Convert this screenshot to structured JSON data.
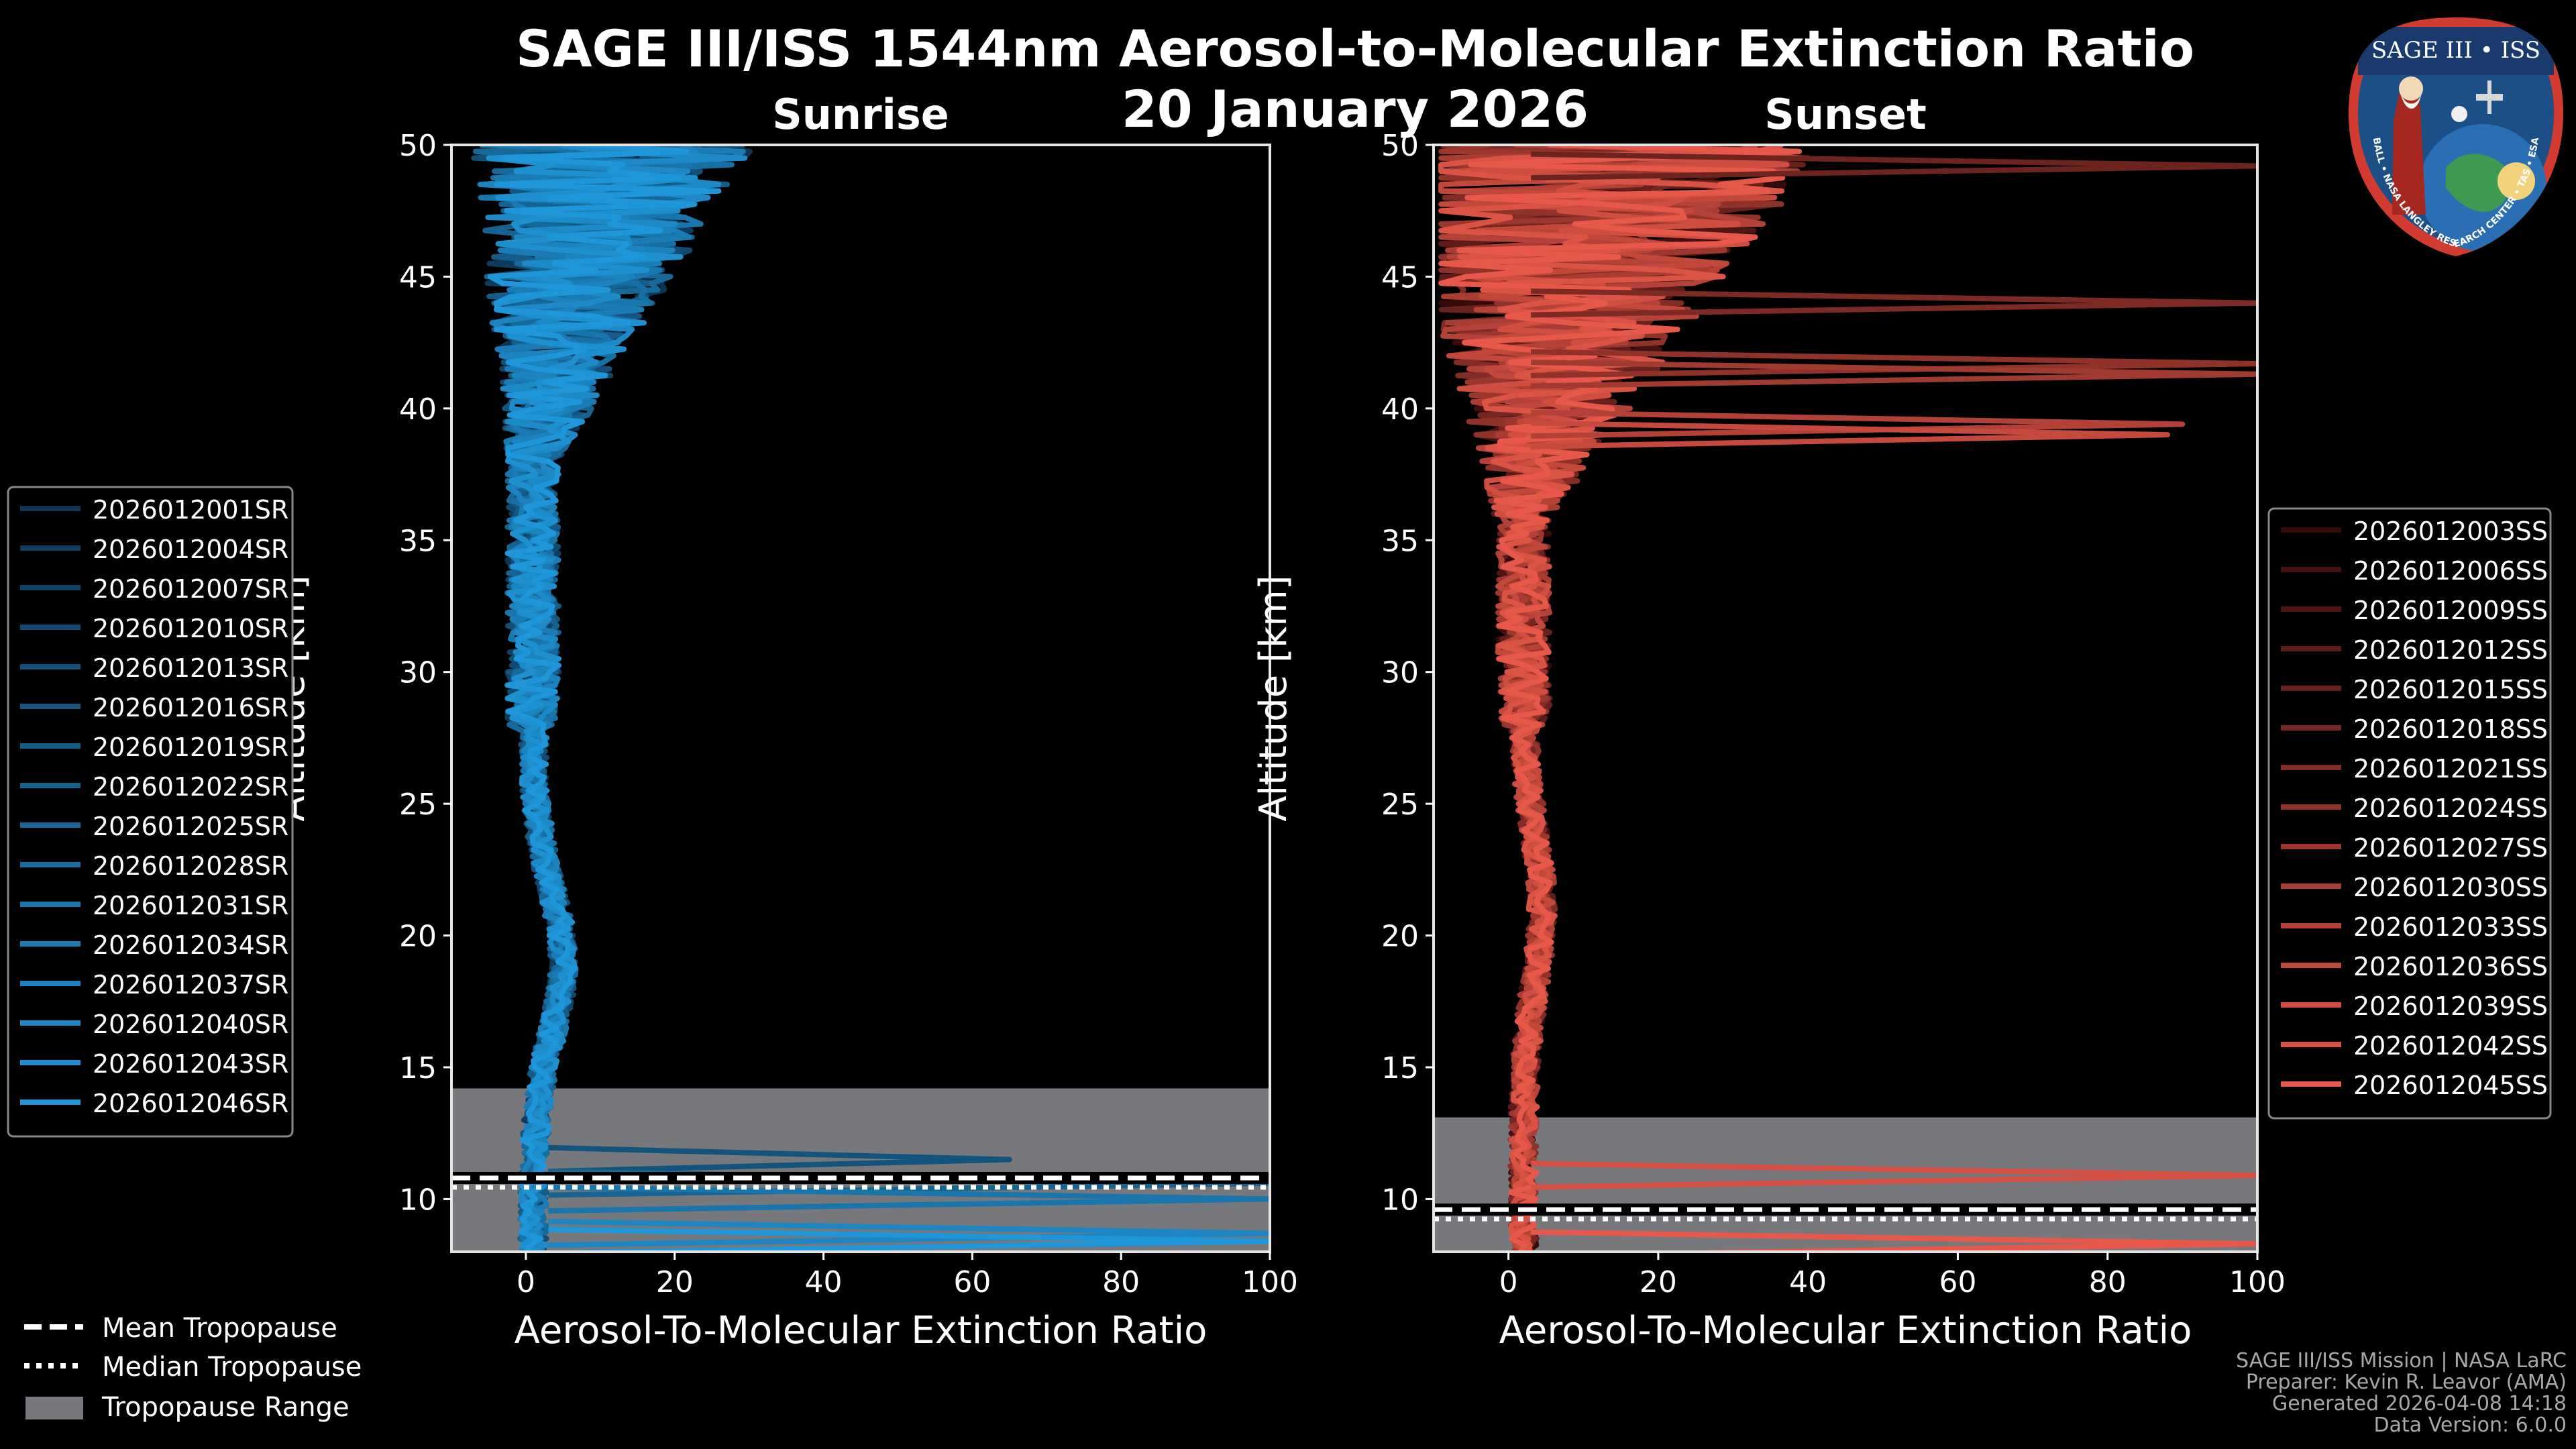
{
  "header": {
    "title_line1": "SAGE III/ISS 1544nm Aerosol-to-Molecular Extinction Ratio",
    "title_line2": "20 January 2026"
  },
  "colors": {
    "sunrise": "#1f96d9",
    "sunset": "#e8584a",
    "tropopause_range": "#76787c",
    "background": "#000000"
  },
  "chart_data": [
    {
      "type": "line",
      "title": "Sunrise",
      "xlabel": "Aerosol-To-Molecular Extinction Ratio",
      "ylabel": "Altitude [km]",
      "xlim": [
        -10,
        100
      ],
      "ylim": [
        8,
        50
      ],
      "xticks": [
        0,
        20,
        40,
        60,
        80,
        100
      ],
      "yticks": [
        10,
        15,
        20,
        25,
        30,
        35,
        40,
        45,
        50
      ],
      "tropopause_range": [
        8,
        14.2
      ],
      "mean_tropopause": 10.8,
      "median_tropopause": 10.7,
      "spikes": [
        [
          11.5,
          65
        ],
        [
          10.6,
          100
        ],
        [
          10.0,
          100
        ],
        [
          8.7,
          100
        ],
        [
          8.4,
          100
        ]
      ],
      "series": [
        "2026012001SR",
        "2026012004SR",
        "2026012007SR",
        "2026012010SR",
        "2026012013SR",
        "2026012016SR",
        "2026012019SR",
        "2026012022SR",
        "2026012025SR",
        "2026012028SR",
        "2026012031SR",
        "2026012034SR",
        "2026012037SR",
        "2026012040SR",
        "2026012043SR",
        "2026012046SR"
      ]
    },
    {
      "type": "line",
      "title": "Sunset",
      "xlabel": "Aerosol-To-Molecular Extinction Ratio",
      "ylabel": "Altitude [km]",
      "xlim": [
        -10,
        100
      ],
      "ylim": [
        8,
        50
      ],
      "xticks": [
        0,
        20,
        40,
        60,
        80,
        100
      ],
      "yticks": [
        10,
        15,
        20,
        25,
        30,
        35,
        40,
        45,
        50
      ],
      "tropopause_range": [
        8,
        13.1
      ],
      "mean_tropopause": 9.6,
      "median_tropopause": 9.5,
      "spikes": [
        [
          49.2,
          100
        ],
        [
          44.0,
          100
        ],
        [
          41.7,
          100
        ],
        [
          41.3,
          100
        ],
        [
          39.4,
          90
        ],
        [
          39.0,
          88
        ],
        [
          10.9,
          100
        ],
        [
          8.3,
          100
        ]
      ],
      "series": [
        "2026012003SS",
        "2026012006SS",
        "2026012009SS",
        "2026012012SS",
        "2026012015SS",
        "2026012018SS",
        "2026012021SS",
        "2026012024SS",
        "2026012027SS",
        "2026012030SS",
        "2026012033SS",
        "2026012036SS",
        "2026012039SS",
        "2026012042SS",
        "2026012045SS"
      ]
    }
  ],
  "legend_bottom": {
    "mean": "Mean Tropopause",
    "median": "Median Tropopause",
    "range": "Tropopause Range"
  },
  "footer": {
    "line1": "SAGE III/ISS Mission | NASA LaRC",
    "line2": "Preparer: Kevin R. Leavor (AMA)",
    "line3": "Generated 2026-04-08 14:18",
    "line4": "Data Version: 6.0.0"
  },
  "badge": {
    "title": "SAGE III • ISS",
    "ring_text": "BALL • NASA LANGLEY RESEARCH CENTER • TAS • ESA",
    "icon": "mission-patch-icon"
  }
}
